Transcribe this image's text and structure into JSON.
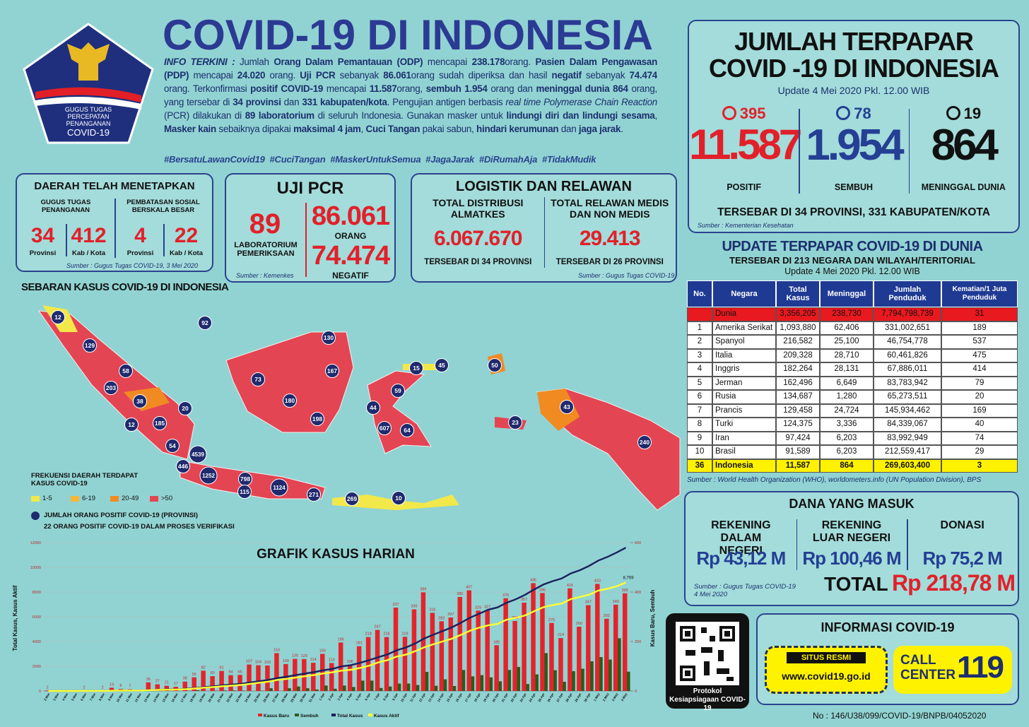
{
  "header": {
    "logo_lines": [
      "GUGUS TUGAS",
      "PERCEPATAN",
      "PENANGANAN",
      "COVID-19"
    ],
    "title": "COVID-19 DI INDONESIA",
    "info": [
      {
        "text": "INFO TERKINI :",
        "bold": true,
        "italic": true
      },
      {
        "text": " Jumlah "
      },
      {
        "text": "Orang Dalam Pemantauan (ODP)",
        "bold": true
      },
      {
        "text": " mencapai "
      },
      {
        "text": "238.178",
        "bold": true
      },
      {
        "text": "orang.  "
      },
      {
        "text": "Pasien Dalam Pengawasan (PDP)",
        "bold": true
      },
      {
        "text": " mencapai "
      },
      {
        "text": "24.020",
        "bold": true
      },
      {
        "text": " orang.  "
      },
      {
        "text": "Uji PCR",
        "bold": true
      },
      {
        "text": " sebanyak "
      },
      {
        "text": "86.061",
        "bold": true
      },
      {
        "text": "orang sudah diperiksa dan hasil "
      },
      {
        "text": "negatif",
        "bold": true
      },
      {
        "text": " sebanyak "
      },
      {
        "text": "74.474",
        "bold": true
      },
      {
        "text": " orang. Terkonfirmasi "
      },
      {
        "text": "positif COVID-19",
        "bold": true
      },
      {
        "text": " mencapai "
      },
      {
        "text": "11.587",
        "bold": true
      },
      {
        "text": "orang, "
      },
      {
        "text": "sembuh 1.954",
        "bold": true
      },
      {
        "text": " orang dan "
      },
      {
        "text": "meninggal dunia 864",
        "bold": true
      },
      {
        "text": " orang, yang tersebar di "
      },
      {
        "text": "34 provinsi",
        "bold": true
      },
      {
        "text": " dan "
      },
      {
        "text": "331 kabupaten/kota",
        "bold": true
      },
      {
        "text": ". Pengujian antigen berbasis "
      },
      {
        "text": "real time",
        "italic": true
      },
      {
        "text": " "
      },
      {
        "text": "Polymerase Chain Reaction",
        "italic": true
      },
      {
        "text": " (PCR) dilakukan di "
      },
      {
        "text": "89 laboratorium",
        "bold": true
      },
      {
        "text": " di seluruh Indonesia. Gunakan masker untuk "
      },
      {
        "text": "lindungi diri dan lindungi sesama",
        "bold": true
      },
      {
        "text": ", "
      },
      {
        "text": "Masker kain",
        "bold": true
      },
      {
        "text": " sebaiknya dipakai "
      },
      {
        "text": "maksimal 4 jam",
        "bold": true
      },
      {
        "text": ", "
      },
      {
        "text": "Cuci Tangan",
        "bold": true
      },
      {
        "text": " pakai sabun, "
      },
      {
        "text": "hindari kerumunan",
        "bold": true
      },
      {
        "text": " dan "
      },
      {
        "text": "jaga jarak",
        "bold": true
      },
      {
        "text": "."
      }
    ],
    "hashtags": "#BersatuLawanCovid19  #CuciTangan  #MaskerUntukSemua  #JagaJarak  #DiRumahAja  #TidakMudik"
  },
  "summary": {
    "title_lines": [
      "JUMLAH TERPAPAR",
      "COVID -19 DI INDONESIA"
    ],
    "update": "Update 4 Mei 2020 Pkl. 12.00 WIB",
    "stats": [
      {
        "delta": "395",
        "value": "11.587",
        "label": "POSITIF",
        "color": "#e2202a"
      },
      {
        "delta": "78",
        "value": "1.954",
        "label": "SEMBUH",
        "color": "#243f94"
      },
      {
        "delta": "19",
        "value": "864",
        "label": "MENINGGAL DUNIA",
        "color": "#111111"
      }
    ],
    "spread": "TERSEBAR DI 34 PROVINSI, 331 KABUPATEN/KOTA",
    "source": "Sumber : Kementerian Kesehatan"
  },
  "daerah": {
    "title": "DAERAH TELAH MENETAPKAN",
    "groups": [
      {
        "label": "GUGUS TUGAS PENANGANAN",
        "items": [
          {
            "value": "34",
            "unit": "Provinsi"
          },
          {
            "value": "412",
            "unit": "Kab / Kota"
          }
        ]
      },
      {
        "label": "PEMBATASAN SOSIAL BERSKALA BESAR",
        "items": [
          {
            "value": "4",
            "unit": "Provinsi"
          },
          {
            "value": "22",
            "unit": "Kab / Kota"
          }
        ]
      }
    ],
    "source": "Sumber : Gugus Tugas COVID-19, 3 Mei 2020"
  },
  "pcr": {
    "title": "UJI PCR",
    "labs": "89",
    "labs_label": "LABORATORIUM PEMERIKSAAN",
    "source": "Sumber : Kemenkes",
    "people": "86.061",
    "people_label": "ORANG",
    "negative": "74.474",
    "negative_label": "NEGATIF"
  },
  "logistik": {
    "title": "LOGISTIK DAN RELAWAN",
    "cols": [
      {
        "label": "TOTAL DISTRIBUSI ALMATKES",
        "value": "6.067.670",
        "note": "TERSEBAR DI 34 PROVINSI"
      },
      {
        "label": "TOTAL RELAWAN MEDIS DAN NON MEDIS",
        "value": "29.413",
        "note": "TERSEBAR DI 26 PROVINSI"
      }
    ],
    "source": "Sumber : Gugus Tugas COVID-19"
  },
  "map": {
    "title": "SEBARAN KASUS COVID-19 DI INDONESIA",
    "markers": [
      12,
      92,
      129,
      130,
      58,
      73,
      167,
      15,
      45,
      50,
      203,
      59,
      38,
      180,
      20,
      44,
      43,
      12,
      185,
      198,
      607,
      64,
      23,
      54,
      4539,
      240,
      446,
      1252,
      798,
      1124,
      271,
      115,
      269,
      10
    ],
    "legend_title": "FREKUENSI DAERAH TERDAPAT KASUS COVID-19",
    "legend": [
      {
        "label": "1-5",
        "color": "#f2e84a"
      },
      {
        "label": "6-19",
        "color": "#f7b733"
      },
      {
        "label": "20-49",
        "color": "#f28a22"
      },
      {
        "label": ">50",
        "color": "#e44553"
      }
    ],
    "marker_label": "JUMLAH ORANG POSITIF COVID-19 (PROVINSI)",
    "note": "22 ORANG POSITIF COVID-19 DALAM PROSES VERIFIKASI"
  },
  "world": {
    "title": "UPDATE TERPAPAR COVID-19 DI DUNIA",
    "subtitle": "TERSEBAR DI 213 NEGARA DAN WILAYAH/TERITORIAL",
    "update": "Update 4 Mei 2020 Pkl. 12.00 WIB",
    "headers": [
      "No.",
      "Negara",
      "Total Kasus",
      "Meninggal",
      "Jumlah Penduduk",
      "Kematian/1 Juta Penduduk"
    ],
    "rows": [
      {
        "negara": "Dunia",
        "total": "3,356,205",
        "meninggal": "238,730",
        "penduduk": "7,794,798,739",
        "kematian": "31",
        "color": "#e8191f"
      },
      {
        "no": "1",
        "negara": "Amerika Serikat",
        "total": "1,093,880",
        "meninggal": "62,406",
        "penduduk": "331,002,651",
        "kematian": "189"
      },
      {
        "no": "2",
        "negara": "Spanyol",
        "total": "216,582",
        "meninggal": "25,100",
        "penduduk": "46,754,778",
        "kematian": "537"
      },
      {
        "no": "3",
        "negara": "Italia",
        "total": "209,328",
        "meninggal": "28,710",
        "penduduk": "60,461,826",
        "kematian": "475"
      },
      {
        "no": "4",
        "negara": "Inggris",
        "total": "182,264",
        "meninggal": "28,131",
        "penduduk": "67,886,011",
        "kematian": "414"
      },
      {
        "no": "5",
        "negara": "Jerman",
        "total": "162,496",
        "meninggal": "6,649",
        "penduduk": "83,783,942",
        "kematian": "79"
      },
      {
        "no": "6",
        "negara": "Rusia",
        "total": "134,687",
        "meninggal": "1,280",
        "penduduk": "65,273,511",
        "kematian": "20"
      },
      {
        "no": "7",
        "negara": "Prancis",
        "total": "129,458",
        "meninggal": "24,724",
        "penduduk": "145,934,462",
        "kematian": "169"
      },
      {
        "no": "8",
        "negara": "Turki",
        "total": "124,375",
        "meninggal": "3,336",
        "penduduk": "84,339,067",
        "kematian": "40"
      },
      {
        "no": "9",
        "negara": "Iran",
        "total": "97,424",
        "meninggal": "6,203",
        "penduduk": "83,992,949",
        "kematian": "74"
      },
      {
        "no": "10",
        "negara": "Brasil",
        "total": "91,589",
        "meninggal": "6,203",
        "penduduk": "212,559,417",
        "kematian": "29"
      },
      {
        "no": "36",
        "negara": "Indonesia",
        "total": "11,587",
        "meninggal": "864",
        "penduduk": "269,603,400",
        "kematian": "3",
        "color": "#fff200"
      }
    ],
    "source": "Sumber : World Health Organization (WHO), worldometers.info (UN Population Division), BPS"
  },
  "dana": {
    "title": "DANA YANG MASUK",
    "cols": [
      {
        "label": "REKENING DALAM NEGERI",
        "value": "Rp 43,12 M"
      },
      {
        "label": "REKENING LUAR NEGERI",
        "value": "Rp 100,46 M"
      },
      {
        "label": "DONASI",
        "value": "Rp 75,2 M"
      }
    ],
    "source": "Sumber : Gugus Tugas COVID-19 4 Mei 2020",
    "total_label": "TOTAL",
    "total": "Rp 218,78 M"
  },
  "qr": {
    "caption": "Protokol Kesiapsiagaan COVID-19"
  },
  "info": {
    "title": "INFORMASI COVID-19",
    "site_label": "SITUS RESMI",
    "site": "www.covid19.go.id",
    "call_label": "CALL CENTER",
    "call": "119"
  },
  "footer": "No : 146/U38/099/COVID-19/BNPB/04052020",
  "chart_data": {
    "type": "bar",
    "title": "GRAFIK KASUS HARIAN",
    "ylabel": "Total Kasus, Kasus Aktif",
    "y2label": "Kasus Baru, Sembuh",
    "categories": [
      "2 Mar",
      "3 Mar",
      "4 Mar",
      "5 Mar",
      "6 Mar",
      "7 Mar",
      "8 Mar",
      "9 Mar",
      "10 Mar",
      "11 Mar",
      "12 Mar",
      "13 Mar",
      "14 Mar",
      "15 Mar",
      "16 Mar",
      "17 Mar",
      "18 Mar",
      "19 Mar",
      "20 Mar",
      "21 Mar",
      "22 Mar",
      "23 Mar",
      "24 Mar",
      "25 Mar",
      "26 Mar",
      "27 Mar",
      "28 Mar",
      "29 Mar",
      "30 Mar",
      "31 Mar",
      "1 Apr",
      "2 Apr",
      "3 Apr",
      "4 Apr",
      "5 Apr",
      "6 Apr",
      "7 Apr",
      "8 Apr",
      "9 Apr",
      "10 Apr",
      "11 Apr",
      "12 Apr",
      "13 Apr",
      "14 Apr",
      "15 Apr",
      "16 Apr",
      "17 Apr",
      "18 Apr",
      "19 Apr",
      "20 Apr",
      "21 Apr",
      "22 Apr",
      "23 Apr",
      "24 Apr",
      "25 Apr",
      "26 Apr",
      "27 Apr",
      "28 Apr",
      "29 Apr",
      "30 Apr",
      "1 May",
      "2 May",
      "3 May",
      "4 May"
    ],
    "ylim": [
      0,
      12000
    ],
    "yticks": [
      0,
      2000,
      4000,
      6000,
      8000,
      10000,
      12000
    ],
    "y2lim": [
      0,
      600
    ],
    "y2ticks": [
      0,
      200,
      400,
      600
    ],
    "series": [
      {
        "name": "Kasus Baru",
        "color": "#e5232b",
        "axis": "y2",
        "kind": "bar",
        "labels": true,
        "values": [
          2,
          null,
          null,
          null,
          2,
          null,
          2,
          13,
          8,
          7,
          null,
          35,
          27,
          21,
          17,
          38,
          55,
          82,
          60,
          81,
          64,
          65,
          107,
          104,
          103,
          153,
          109,
          130,
          129,
          114,
          150,
          113,
          196,
          106,
          181,
          218,
          247,
          218,
          337,
          219,
          330,
          399,
          316,
          282,
          297,
          380,
          407,
          325,
          327,
          185,
          375,
          283,
          357,
          436,
          396,
          275,
          214,
          415,
          260,
          347,
          433,
          292,
          349,
          395
        ]
      },
      {
        "name": "Sembuh",
        "color": "#2e5a1c",
        "axis": "y2",
        "kind": "bar",
        "values": [
          0,
          0,
          0,
          0,
          0,
          0,
          0,
          0,
          0,
          0,
          0,
          3,
          5,
          0,
          0,
          1,
          3,
          0,
          1,
          2,
          2,
          1,
          0,
          1,
          11,
          0,
          11,
          18,
          11,
          6,
          22,
          9,
          22,
          16,
          42,
          42,
          12,
          18,
          30,
          30,
          24,
          77,
          21,
          47,
          20,
          85,
          59,
          64,
          55,
          39,
          85,
          97,
          28,
          67,
          153,
          84,
          37,
          80,
          90,
          120,
          137,
          127,
          213,
          78
        ]
      },
      {
        "name": "Total Kasus",
        "color": "#1b1f5e",
        "kind": "line",
        "values": [
          2,
          2,
          2,
          2,
          4,
          4,
          6,
          19,
          27,
          34,
          34,
          69,
          96,
          117,
          134,
          172,
          227,
          309,
          369,
          450,
          514,
          579,
          686,
          790,
          893,
          1046,
          1155,
          1285,
          1414,
          1528,
          1677,
          1790,
          1986,
          2092,
          2273,
          2491,
          2738,
          2956,
          3293,
          3512,
          3842,
          4241,
          4557,
          4839,
          5136,
          5516,
          5923,
          6248,
          6575,
          6760,
          7135,
          7418,
          7775,
          8211,
          8607,
          8882,
          9096,
          9511,
          9771,
          10118,
          10551,
          10843,
          11192,
          11587
        ]
      },
      {
        "name": "Kasus Aktif",
        "color": "#ffff33",
        "kind": "line",
        "values": [
          2,
          2,
          2,
          2,
          4,
          4,
          6,
          19,
          27,
          33,
          32,
          61,
          85,
          104,
          121,
          150,
          200,
          268,
          318,
          385,
          431,
          484,
          576,
          671,
          757,
          896,
          977,
          1081,
          1187,
          1285,
          1417,
          1508,
          1647,
          1714,
          1862,
          2048,
          2313,
          2493,
          2781,
          2937,
          3211,
          3533,
          3778,
          4000,
          4221,
          4538,
          4870,
          5122,
          5307,
          5423,
          5758,
          5915,
          6109,
          6449,
          6769,
          6946,
          7077,
          7426,
          7604,
          7791,
          8119,
          8268,
          8467,
          8769
        ]
      }
    ],
    "annotations": [
      "8,769"
    ],
    "grid": true
  }
}
